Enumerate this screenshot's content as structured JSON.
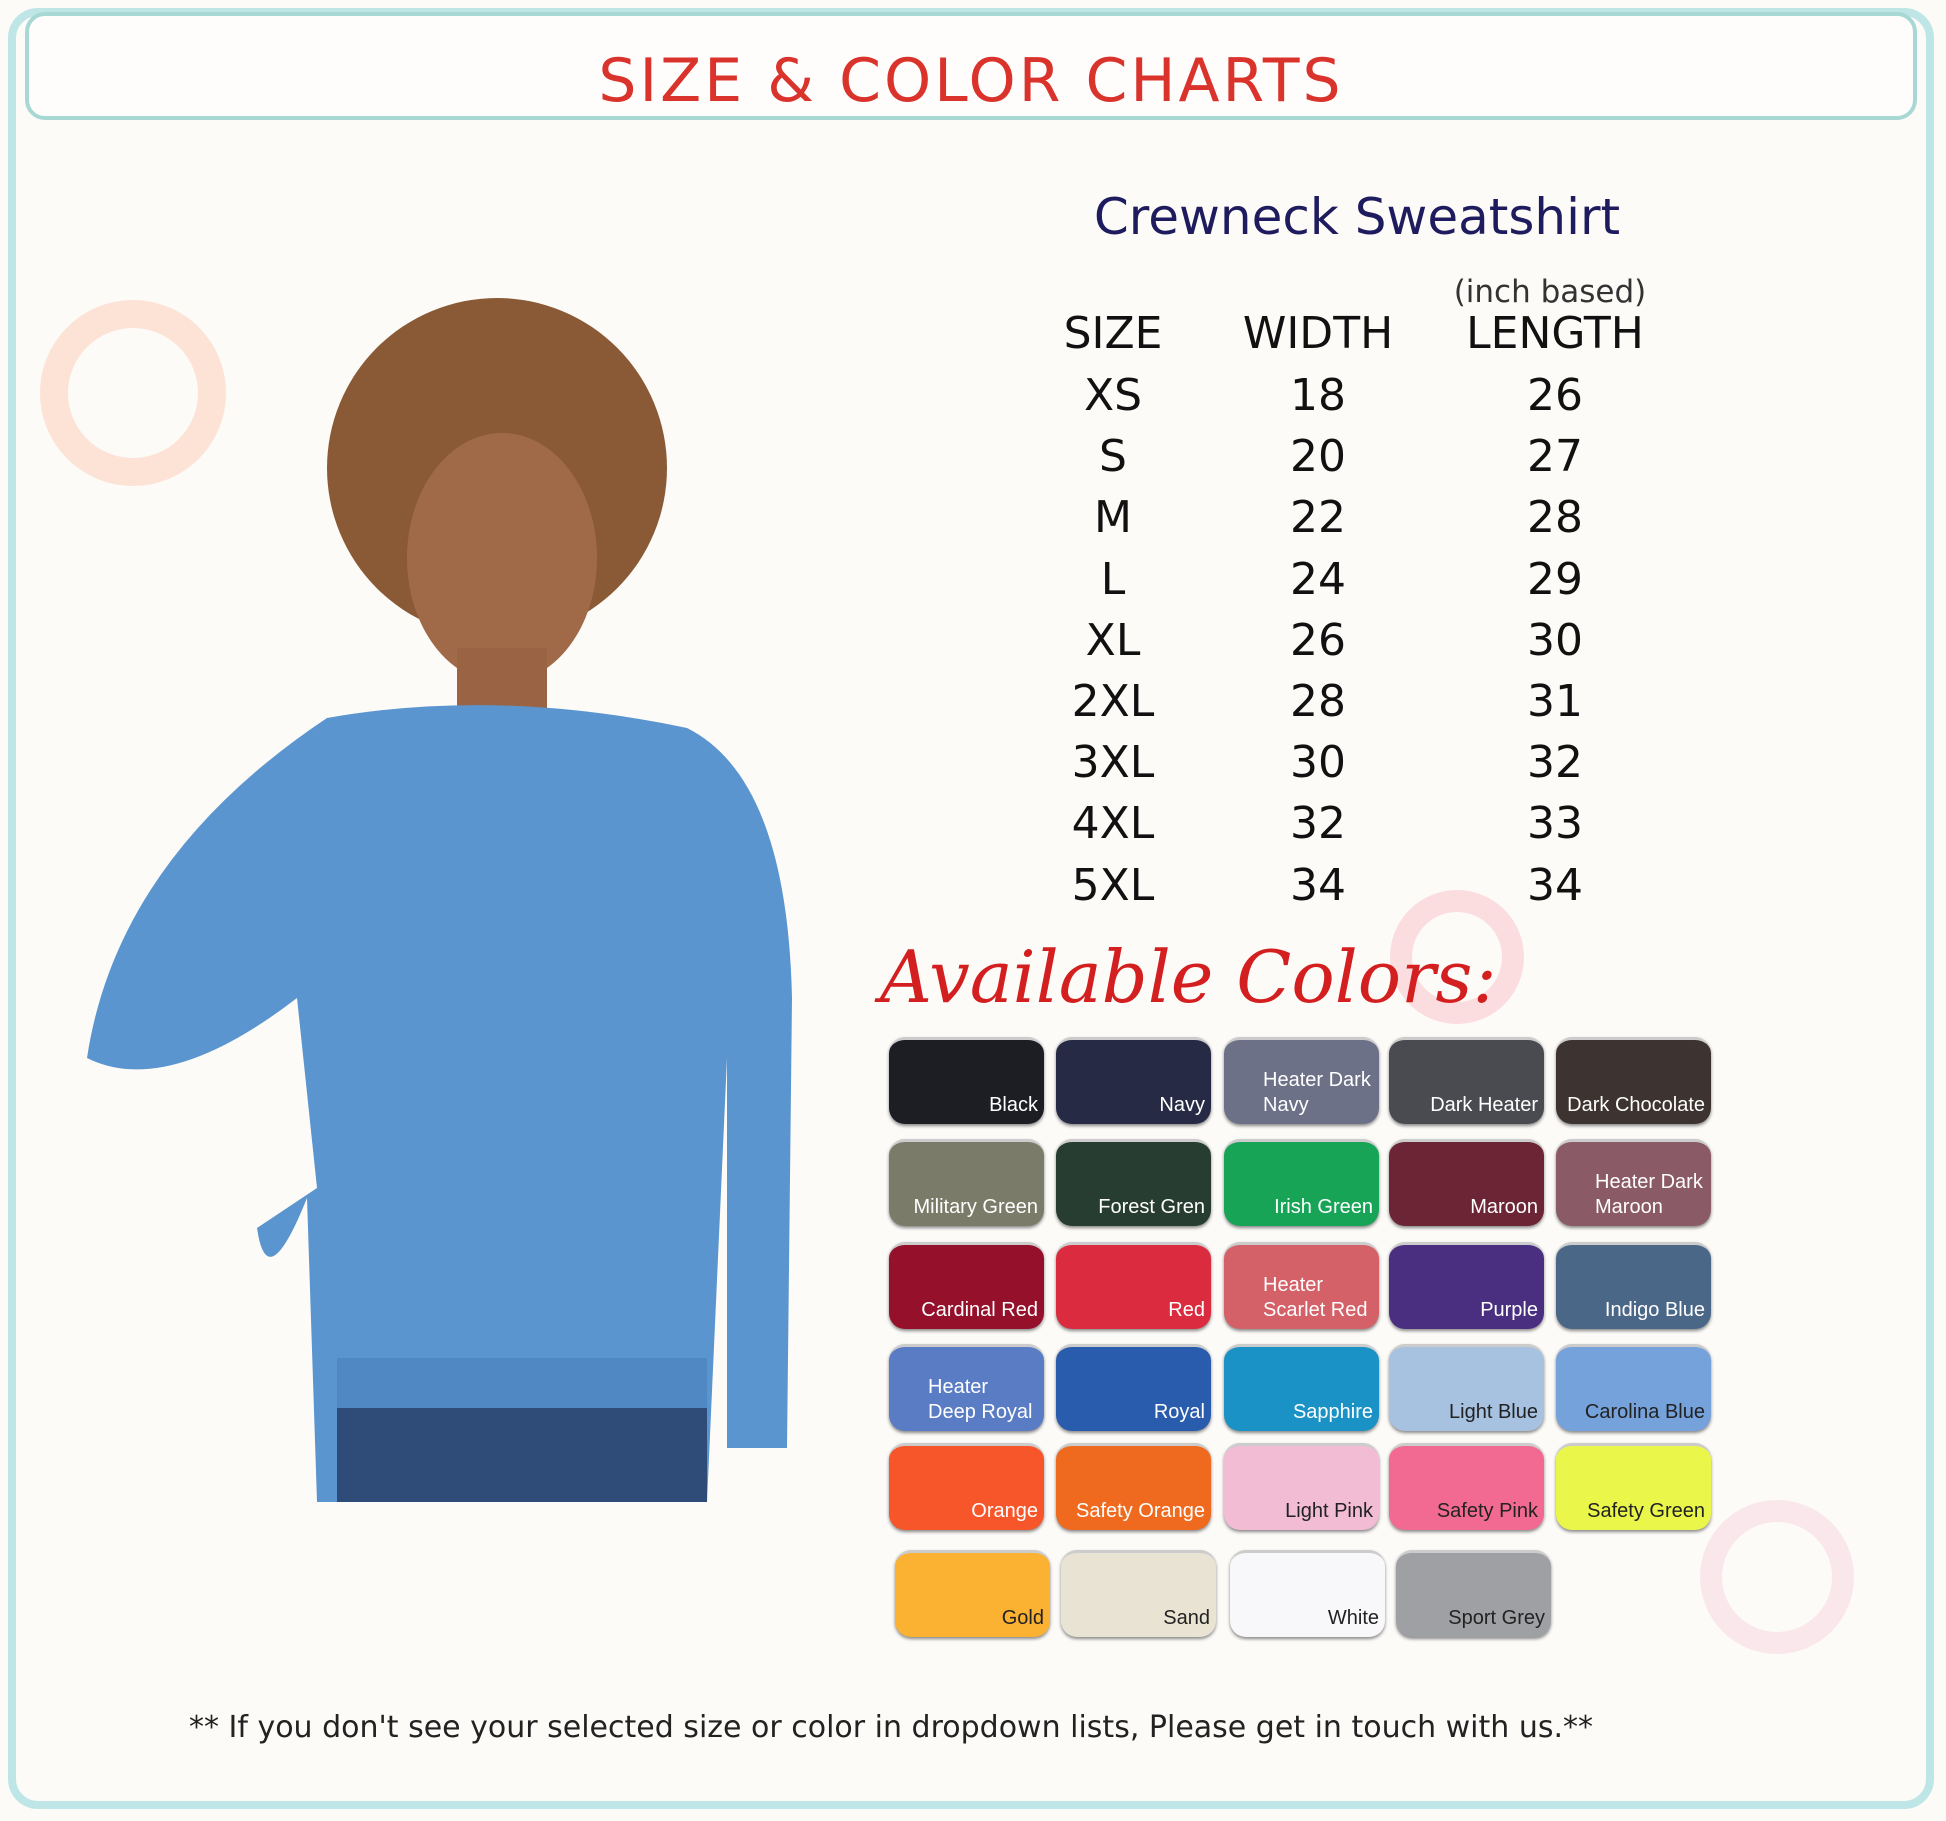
{
  "header": {
    "title": "SIZE & COLOR CHARTS"
  },
  "product": {
    "name": "Crewneck Sweatshirt",
    "unit_note": "(inch based)"
  },
  "size_table": {
    "headers": [
      "SIZE",
      "WIDTH",
      "LENGTH"
    ],
    "rows": [
      [
        "XS",
        "18",
        "26"
      ],
      [
        "S",
        "20",
        "27"
      ],
      [
        "M",
        "22",
        "28"
      ],
      [
        "L",
        "24",
        "29"
      ],
      [
        "XL",
        "26",
        "30"
      ],
      [
        "2XL",
        "28",
        "31"
      ],
      [
        "3XL",
        "30",
        "32"
      ],
      [
        "4XL",
        "32",
        "33"
      ],
      [
        "5XL",
        "34",
        "34"
      ]
    ]
  },
  "colors_heading": "Available Colors:",
  "colors": [
    {
      "name": "Black",
      "hex": "#1c1e24",
      "text": "#fff"
    },
    {
      "name": "Navy",
      "hex": "#262a45",
      "text": "#fff"
    },
    {
      "name": "Heater Dark Navy",
      "hex": "#6c7187",
      "text": "#fff"
    },
    {
      "name": "Dark Heater",
      "hex": "#4a4b50",
      "text": "#fff"
    },
    {
      "name": "Dark Chocolate",
      "hex": "#3d3330",
      "text": "#fff"
    },
    {
      "name": "Military Green",
      "hex": "#7a7c69",
      "text": "#fff"
    },
    {
      "name": "Forest Gren",
      "hex": "#273d31",
      "text": "#fff"
    },
    {
      "name": "Irish Green",
      "hex": "#17a457",
      "text": "#fff"
    },
    {
      "name": "Maroon",
      "hex": "#6b2535",
      "text": "#fff"
    },
    {
      "name": "Heater Dark Maroon",
      "hex": "#8a5a66",
      "text": "#fff"
    },
    {
      "name": "Cardinal Red",
      "hex": "#94102b",
      "text": "#fff"
    },
    {
      "name": "Red",
      "hex": "#db2b3f",
      "text": "#fff"
    },
    {
      "name": "Heater Scarlet Red",
      "hex": "#d46068",
      "text": "#fff"
    },
    {
      "name": "Purple",
      "hex": "#4a2f80",
      "text": "#fff"
    },
    {
      "name": "Indigo Blue",
      "hex": "#4b6788",
      "text": "#fff"
    },
    {
      "name": "Heater Deep Royal",
      "hex": "#5a7cc4",
      "text": "#fff"
    },
    {
      "name": "Royal",
      "hex": "#2a5cad",
      "text": "#fff"
    },
    {
      "name": "Sapphire",
      "hex": "#1a92c6",
      "text": "#fff"
    },
    {
      "name": "Light Blue",
      "hex": "#a6c2e0",
      "text": "#222"
    },
    {
      "name": "Carolina Blue",
      "hex": "#76a2dc",
      "text": "#222"
    },
    {
      "name": "Orange",
      "hex": "#f7552a",
      "text": "#fff"
    },
    {
      "name": "Safety Orange",
      "hex": "#ef6a1e",
      "text": "#fff"
    },
    {
      "name": "Light Pink",
      "hex": "#f2bcd4",
      "text": "#222"
    },
    {
      "name": "Safety Pink",
      "hex": "#f26a92",
      "text": "#222"
    },
    {
      "name": "Safety Green",
      "hex": "#eaf74a",
      "text": "#222"
    },
    {
      "name": "Gold",
      "hex": "#fbb131",
      "text": "#222"
    },
    {
      "name": "Sand",
      "hex": "#e8e3d2",
      "text": "#222"
    },
    {
      "name": "White",
      "hex": "#f8f8fa",
      "text": "#222"
    },
    {
      "name": "Sport Grey",
      "hex": "#9fa0a4",
      "text": "#222"
    }
  ],
  "footer": "** If you don't see your selected size or color in dropdown lists, Please get in touch with us.**",
  "accent": "#d9332b"
}
